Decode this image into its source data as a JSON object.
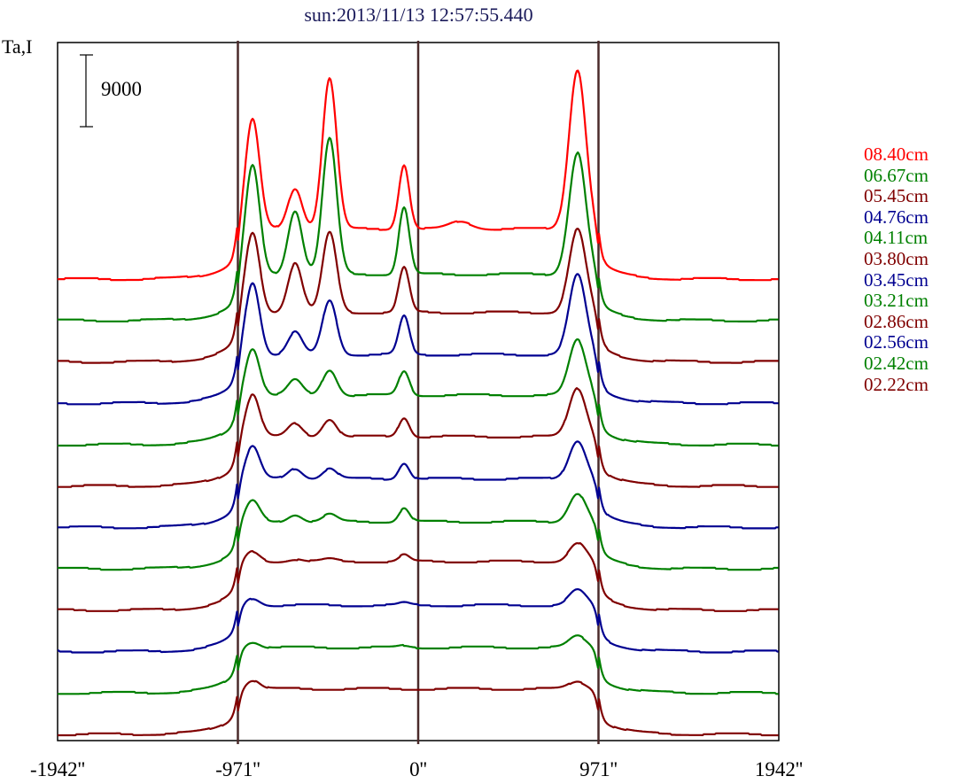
{
  "chart_data": {
    "type": "line",
    "title": "sun:2013/11/13 12:57:55.440",
    "ylabel": "Ta,I",
    "xlabel": "",
    "scale_bar": {
      "value": 9000,
      "label": "9000"
    },
    "xlim": [
      -1942,
      1942
    ],
    "ylim": [
      0,
      88000
    ],
    "x_ticks": [
      {
        "value": -1942,
        "label": "-1942''"
      },
      {
        "value": -971,
        "label": "-971''"
      },
      {
        "value": 0,
        "label": "0''"
      },
      {
        "value": 971,
        "label": "971''"
      },
      {
        "value": 1942,
        "label": "1942''"
      }
    ],
    "vertical_lines": [
      -971,
      0,
      971
    ],
    "solar_radius_arcsec": 971,
    "peak_positions_arcsec": [
      -892,
      -663,
      -477,
      -76,
      858,
      229
    ],
    "peak_widths_arcsec": [
      38,
      38,
      38,
      28,
      45,
      60
    ],
    "series": [
      {
        "name": "08.40cm",
        "color": "#ff0000",
        "offset": 57880,
        "disk": 6300,
        "peaks": [
          13700,
          5100,
          18900,
          8100,
          20000,
          900
        ]
      },
      {
        "name": "06.67cm",
        "color": "#008000",
        "offset": 52690,
        "disk": 5800,
        "peaks": [
          13600,
          8000,
          17000,
          8400,
          15300,
          0
        ]
      },
      {
        "name": "05.45cm",
        "color": "#800000",
        "offset": 47500,
        "disk": 6200,
        "peaks": [
          10000,
          6200,
          10000,
          5600,
          10400,
          0
        ]
      },
      {
        "name": "04.76cm",
        "color": "#000090",
        "offset": 42310,
        "disk": 6100,
        "peaks": [
          9100,
          2800,
          6800,
          4800,
          10000,
          0
        ]
      },
      {
        "name": "04.11cm",
        "color": "#008000",
        "offset": 37120,
        "disk": 6200,
        "peaks": [
          5900,
          1900,
          3200,
          3000,
          6900,
          0
        ]
      },
      {
        "name": "03.80cm",
        "color": "#800000",
        "offset": 31930,
        "disk": 6200,
        "peaks": [
          5300,
          1600,
          2200,
          2400,
          6100,
          0
        ]
      },
      {
        "name": "03.45cm",
        "color": "#000090",
        "offset": 26740,
        "disk": 6100,
        "peaks": [
          4000,
          1300,
          1300,
          2000,
          4800,
          0
        ]
      },
      {
        "name": "03.21cm",
        "color": "#008000",
        "offset": 21550,
        "disk": 5900,
        "peaks": [
          2600,
          900,
          900,
          1700,
          3600,
          0
        ]
      },
      {
        "name": "02.86cm",
        "color": "#800000",
        "offset": 16360,
        "disk": 6100,
        "peaks": [
          1200,
          300,
          300,
          800,
          2300,
          0
        ]
      },
      {
        "name": "02.56cm",
        "color": "#000090",
        "offset": 11170,
        "disk": 5800,
        "peaks": [
          900,
          0,
          0,
          300,
          1900,
          0
        ]
      },
      {
        "name": "02.42cm",
        "color": "#008000",
        "offset": 5980,
        "disk": 5700,
        "peaks": [
          700,
          0,
          0,
          200,
          1400,
          0
        ]
      },
      {
        "name": "02.22cm",
        "color": "#800000",
        "offset": 790,
        "disk": 5700,
        "peaks": [
          1100,
          0,
          0,
          0,
          900,
          0
        ]
      }
    ]
  }
}
